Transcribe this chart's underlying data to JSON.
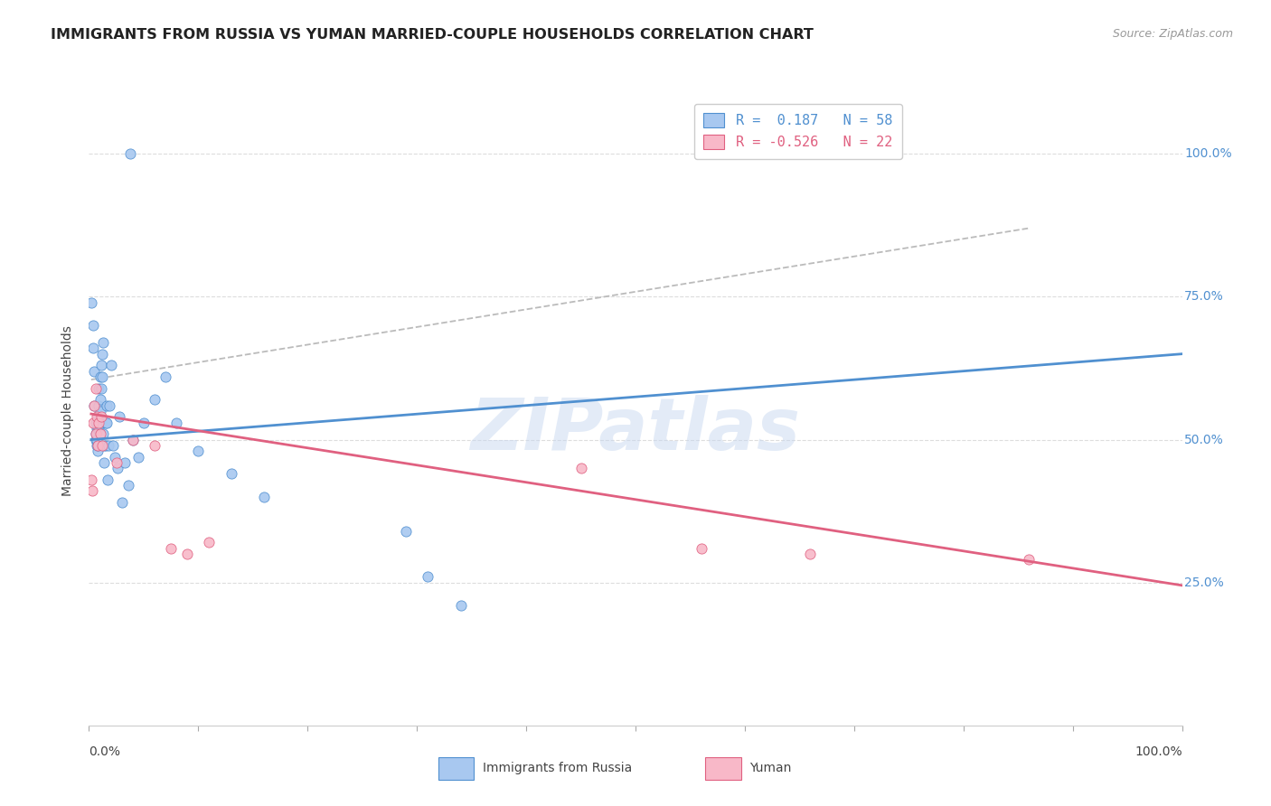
{
  "title": "IMMIGRANTS FROM RUSSIA VS YUMAN MARRIED-COUPLE HOUSEHOLDS CORRELATION CHART",
  "source": "Source: ZipAtlas.com",
  "ylabel": "Married-couple Households",
  "yticks": [
    "25.0%",
    "50.0%",
    "75.0%",
    "100.0%"
  ],
  "ytick_vals": [
    0.25,
    0.5,
    0.75,
    1.0
  ],
  "legend_blue_R": "0.187",
  "legend_blue_N": "58",
  "legend_pink_R": "-0.526",
  "legend_pink_N": "22",
  "blue_color": "#A8C8F0",
  "pink_color": "#F8B8C8",
  "blue_line_color": "#5090D0",
  "pink_line_color": "#E06080",
  "dashed_line_color": "#BBBBBB",
  "watermark_color": "#C8D8F0",
  "blue_scatter_x": [
    0.002,
    0.004,
    0.004,
    0.005,
    0.005,
    0.006,
    0.006,
    0.006,
    0.007,
    0.007,
    0.007,
    0.008,
    0.008,
    0.008,
    0.008,
    0.009,
    0.009,
    0.009,
    0.01,
    0.01,
    0.01,
    0.011,
    0.011,
    0.011,
    0.012,
    0.012,
    0.013,
    0.013,
    0.014,
    0.014,
    0.015,
    0.015,
    0.016,
    0.016,
    0.017,
    0.018,
    0.019,
    0.02,
    0.022,
    0.024,
    0.026,
    0.028,
    0.03,
    0.033,
    0.036,
    0.04,
    0.045,
    0.05,
    0.06,
    0.07,
    0.08,
    0.1,
    0.13,
    0.16,
    0.038,
    0.29,
    0.31,
    0.34
  ],
  "blue_scatter_y": [
    0.74,
    0.7,
    0.66,
    0.62,
    0.56,
    0.53,
    0.51,
    0.5,
    0.49,
    0.52,
    0.5,
    0.48,
    0.54,
    0.52,
    0.49,
    0.56,
    0.52,
    0.59,
    0.55,
    0.61,
    0.57,
    0.53,
    0.63,
    0.59,
    0.65,
    0.61,
    0.67,
    0.51,
    0.49,
    0.46,
    0.53,
    0.49,
    0.56,
    0.53,
    0.43,
    0.49,
    0.56,
    0.63,
    0.49,
    0.47,
    0.45,
    0.54,
    0.39,
    0.46,
    0.42,
    0.5,
    0.47,
    0.53,
    0.57,
    0.61,
    0.53,
    0.48,
    0.44,
    0.4,
    1.0,
    0.34,
    0.26,
    0.21
  ],
  "pink_scatter_x": [
    0.002,
    0.003,
    0.004,
    0.005,
    0.006,
    0.006,
    0.007,
    0.008,
    0.009,
    0.01,
    0.011,
    0.012,
    0.025,
    0.04,
    0.06,
    0.075,
    0.09,
    0.11,
    0.45,
    0.56,
    0.66,
    0.86
  ],
  "pink_scatter_y": [
    0.43,
    0.41,
    0.53,
    0.56,
    0.59,
    0.51,
    0.54,
    0.49,
    0.53,
    0.51,
    0.54,
    0.49,
    0.46,
    0.5,
    0.49,
    0.31,
    0.3,
    0.32,
    0.45,
    0.31,
    0.3,
    0.29
  ],
  "blue_line_x": [
    0.002,
    1.0
  ],
  "blue_line_y": [
    0.5,
    0.65
  ],
  "pink_line_x": [
    0.002,
    1.0
  ],
  "pink_line_y": [
    0.545,
    0.245
  ],
  "dashed_line_x": [
    0.002,
    0.86
  ],
  "dashed_line_y": [
    0.605,
    0.87
  ],
  "xlim": [
    0,
    1.0
  ],
  "ylim": [
    0,
    1.1
  ]
}
